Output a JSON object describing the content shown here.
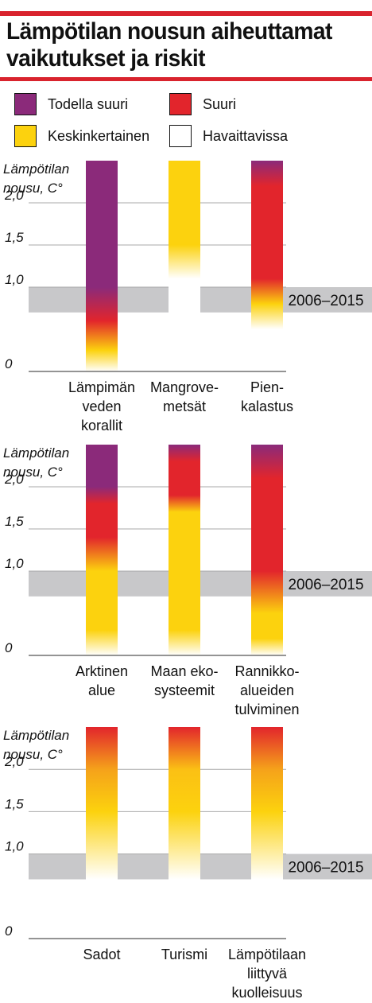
{
  "title": "Lämpötilan nousun aiheuttamat vaikutukset ja riskit",
  "legend": [
    {
      "label": "Todella suuri",
      "color": "#8b2a7a"
    },
    {
      "label": "Suuri",
      "color": "#e2252c"
    },
    {
      "label": "Keskinkertainen",
      "color": "#fcd20e"
    },
    {
      "label": "Havaittavissa",
      "color": "#ffffff"
    }
  ],
  "chart_data": [
    {
      "type": "bar",
      "ylabel": [
        "Lämpötilan",
        "nousu, C°"
      ],
      "yticks": [
        "0",
        "1,0",
        "1,5",
        "2,0"
      ],
      "ytick_values": [
        0,
        1.0,
        1.5,
        2.0
      ],
      "ylim": [
        0,
        2.5
      ],
      "band": {
        "label": "2006–2015",
        "range": [
          0.7,
          1.0
        ]
      },
      "categories": [
        [
          "Lämpimän",
          "veden",
          "korallit"
        ],
        [
          "Mangrove-",
          "metsät"
        ],
        [
          "Pien-",
          "kalastus"
        ]
      ],
      "series": [
        {
          "stops": [
            [
              0,
              "#ffffff"
            ],
            [
              0.25,
              "#fcd20e"
            ],
            [
              0.6,
              "#e2252c"
            ],
            [
              1.0,
              "#8b2a7a"
            ],
            [
              2.5,
              "#8b2a7a"
            ]
          ]
        },
        {
          "stops": [
            [
              0,
              "#ffffff"
            ],
            [
              1.1,
              "#ffffff"
            ],
            [
              1.5,
              "#fcd20e"
            ],
            [
              2.5,
              "#fcd20e"
            ]
          ]
        },
        {
          "stops": [
            [
              0,
              "#ffffff"
            ],
            [
              0.5,
              "#ffffff"
            ],
            [
              0.8,
              "#fcd20e"
            ],
            [
              1.1,
              "#e2252c"
            ],
            [
              2.2,
              "#e2252c"
            ],
            [
              2.5,
              "#8b2a7a"
            ]
          ]
        }
      ]
    },
    {
      "type": "bar",
      "ylabel": [
        "Lämpötilan",
        "nousu, C°"
      ],
      "yticks": [
        "0",
        "1,0",
        "1,5",
        "2,0"
      ],
      "ytick_values": [
        0,
        1.0,
        1.5,
        2.0
      ],
      "ylim": [
        0,
        2.5
      ],
      "band": {
        "label": "2006–2015",
        "range": [
          0.7,
          1.0
        ]
      },
      "categories": [
        [
          "Arktinen",
          "alue"
        ],
        [
          "Maan eko-",
          "systeemit"
        ],
        [
          "Rannikko-",
          "alueiden",
          "tulviminen"
        ]
      ],
      "series": [
        {
          "stops": [
            [
              0,
              "#ffffff"
            ],
            [
              0.3,
              "#fcd20e"
            ],
            [
              1.0,
              "#fcd20e"
            ],
            [
              1.4,
              "#e2252c"
            ],
            [
              1.8,
              "#e2252c"
            ],
            [
              2.0,
              "#8b2a7a"
            ],
            [
              2.5,
              "#8b2a7a"
            ]
          ]
        },
        {
          "stops": [
            [
              0,
              "#ffffff"
            ],
            [
              0.3,
              "#fcd20e"
            ],
            [
              1.7,
              "#fcd20e"
            ],
            [
              1.9,
              "#e2252c"
            ],
            [
              2.3,
              "#e2252c"
            ],
            [
              2.5,
              "#8b2a7a"
            ]
          ]
        },
        {
          "stops": [
            [
              0,
              "#ffffff"
            ],
            [
              0.2,
              "#fcd20e"
            ],
            [
              0.5,
              "#fcd20e"
            ],
            [
              1.0,
              "#e2252c"
            ],
            [
              2.1,
              "#e2252c"
            ],
            [
              2.5,
              "#8b2a7a"
            ]
          ]
        }
      ]
    },
    {
      "type": "bar",
      "ylabel": [
        "Lämpötilan",
        "nousu, C°"
      ],
      "yticks": [
        "0",
        "1,0",
        "1,5",
        "2,0"
      ],
      "ytick_values": [
        0,
        1.0,
        1.5,
        2.0
      ],
      "ylim": [
        0,
        2.5
      ],
      "band": {
        "label": "2006–2015",
        "range": [
          0.7,
          1.0
        ]
      },
      "categories": [
        [
          "Sadot"
        ],
        [
          "Turismi"
        ],
        [
          "Lämpötilaan",
          "liittyvä",
          "kuolleisuus"
        ]
      ],
      "series": [
        {
          "stops": [
            [
              0,
              "#ffffff"
            ],
            [
              0.7,
              "#ffffff"
            ],
            [
              1.5,
              "#fcd20e"
            ],
            [
              2.0,
              "#f5a21a"
            ],
            [
              2.5,
              "#e2252c"
            ]
          ]
        },
        {
          "stops": [
            [
              0,
              "#ffffff"
            ],
            [
              0.7,
              "#ffffff"
            ],
            [
              1.5,
              "#fcd20e"
            ],
            [
              2.0,
              "#fbc014"
            ],
            [
              2.5,
              "#e2252c"
            ]
          ]
        },
        {
          "stops": [
            [
              0,
              "#ffffff"
            ],
            [
              0.7,
              "#ffffff"
            ],
            [
              1.5,
              "#fcd20e"
            ],
            [
              2.0,
              "#f5a21a"
            ],
            [
              2.5,
              "#e2252c"
            ]
          ]
        }
      ]
    }
  ]
}
